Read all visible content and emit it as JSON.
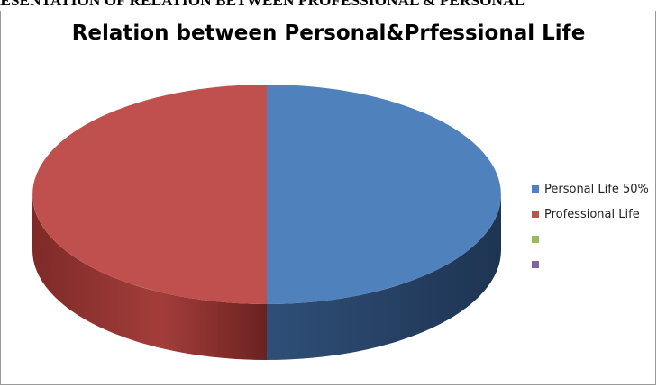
{
  "page": {
    "caption": "RESENTATION OF RELATION BETWEEN PROFESSIONAL & PERSONAL"
  },
  "chart_data": {
    "type": "pie",
    "title": "Relation between Personal&Prfessional Life",
    "categories": [
      "Personal Life 50%",
      "Professional Life",
      "",
      ""
    ],
    "values": [
      50,
      50,
      0,
      0
    ],
    "colors": [
      "#4F81BD",
      "#C0504D",
      "#9BBB59",
      "#8064A2"
    ],
    "side_colors": [
      "#2B4566",
      "#8F2E2C"
    ],
    "style": "3d",
    "legend_position": "right"
  }
}
